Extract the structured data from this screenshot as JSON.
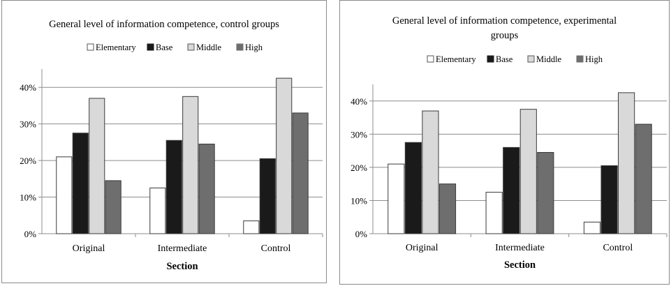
{
  "chart_data": [
    {
      "type": "bar",
      "title": "General level of information competence, control groups",
      "xlabel": "Section",
      "ylabel": "",
      "categories": [
        "Original",
        "Intermediate",
        "Control"
      ],
      "series": [
        {
          "name": "Elementary",
          "color": "#ffffff",
          "values": [
            21,
            12.5,
            3.5
          ]
        },
        {
          "name": "Base",
          "color": "#1a1a1a",
          "values": [
            27.5,
            25.5,
            20.5
          ]
        },
        {
          "name": "Middle",
          "color": "#d9d9d9",
          "values": [
            37,
            37.5,
            42.5
          ]
        },
        {
          "name": "High",
          "color": "#6e6e6e",
          "values": [
            14.5,
            24.5,
            33
          ]
        }
      ],
      "ylim": [
        0,
        45
      ],
      "yticks": [
        "0%",
        "10%",
        "20%",
        "30%",
        "40%"
      ],
      "legend_position": "top",
      "grid": true
    },
    {
      "type": "bar",
      "title": "General level of information competence, experimental groups",
      "xlabel": "Section",
      "ylabel": "",
      "categories": [
        "Original",
        "Intermediate",
        "Control"
      ],
      "series": [
        {
          "name": "Elementary",
          "color": "#ffffff",
          "values": [
            21,
            12.5,
            3.5
          ]
        },
        {
          "name": "Base",
          "color": "#1a1a1a",
          "values": [
            27.5,
            26,
            20.5
          ]
        },
        {
          "name": "Middle",
          "color": "#d9d9d9",
          "values": [
            37,
            37.5,
            42.5
          ]
        },
        {
          "name": "High",
          "color": "#6e6e6e",
          "values": [
            15,
            24.5,
            33
          ]
        }
      ],
      "ylim": [
        0,
        45
      ],
      "yticks": [
        "0%",
        "10%",
        "20%",
        "30%",
        "40%"
      ],
      "legend_position": "top",
      "grid": true
    }
  ]
}
